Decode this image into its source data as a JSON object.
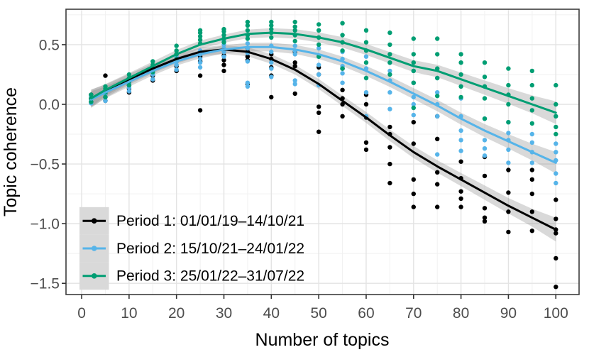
{
  "chart_data": {
    "type": "scatter",
    "title": "",
    "xlabel": "Number of topics",
    "ylabel": "Topic coherence",
    "x_domain": [
      -3.3,
      104.9
    ],
    "y_domain": [
      -1.594,
      0.797
    ],
    "x_ticks": [
      0,
      10,
      20,
      30,
      40,
      50,
      60,
      70,
      80,
      90,
      100
    ],
    "x_tick_labels": [
      "0",
      "10",
      "20",
      "30",
      "40",
      "50",
      "60",
      "70",
      "80",
      "90",
      "100"
    ],
    "y_ticks": [
      0.5,
      0,
      -0.5,
      -1,
      -1.5
    ],
    "y_tick_labels": [
      "0.5",
      "0.0",
      "−0.5",
      "−1.0",
      "−1.5"
    ],
    "x_minor": [
      5,
      15,
      25,
      35,
      45,
      55,
      65,
      75,
      85,
      95
    ],
    "y_minor": [
      0.75,
      0.25,
      -0.25,
      -0.75,
      -1.25
    ],
    "grid": true,
    "legend_position": "bottom-left-inside",
    "cluster_x": [
      2,
      5,
      10,
      15,
      20,
      25,
      30,
      35,
      40,
      45,
      50,
      55,
      60,
      65,
      70,
      75,
      80,
      85,
      90,
      95,
      100
    ],
    "colors": {
      "grid_major": "#e3e3e3",
      "grid_minor": "#f1f1f1",
      "panel_border": "#3c3c3c",
      "tick_mark": "#333333",
      "tick_label": "#4d4d4d",
      "ribbon": "#808080",
      "legend_key_fill": "#d9d9d9"
    },
    "series": [
      {
        "name": "Period 1: 01/01/19–14/10/21",
        "color": "#000000",
        "smooth_y": [
          0.05,
          0.11,
          0.21,
          0.3,
          0.38,
          0.44,
          0.46,
          0.44,
          0.38,
          0.29,
          0.17,
          0.03,
          -0.11,
          -0.26,
          -0.4,
          -0.52,
          -0.63,
          -0.74,
          -0.85,
          -0.95,
          -1.05
        ],
        "ci_hw": [
          0.075,
          0.055,
          0.045,
          0.04,
          0.038,
          0.036,
          0.036,
          0.038,
          0.04,
          0.04,
          0.042,
          0.044,
          0.046,
          0.048,
          0.05,
          0.052,
          0.055,
          0.06,
          0.065,
          0.075,
          0.1
        ],
        "points_y": [
          [
            0.02,
            0.05,
            0.08
          ],
          [
            0.03,
            0.06,
            0.09,
            0.24
          ],
          [
            0.1,
            0.13,
            0.16,
            0.19
          ],
          [
            0.2,
            0.24,
            0.27,
            0.3
          ],
          [
            0.28,
            0.32,
            0.36,
            0.42
          ],
          [
            -0.05,
            0.24,
            0.36,
            0.4,
            0.43
          ],
          [
            0.28,
            0.33,
            0.37,
            0.41,
            0.46
          ],
          [
            0.17,
            0.37,
            0.4,
            0.44,
            0.47
          ],
          [
            0.06,
            0.24,
            0.31,
            0.38,
            0.42
          ],
          [
            0.09,
            0.32,
            0.35,
            0.44
          ],
          [
            -0.23,
            -0.07,
            -0.02,
            0.25,
            0.31
          ],
          [
            -0.1,
            0.0,
            0.05,
            0.12,
            0.3
          ],
          [
            -0.38,
            -0.32,
            -0.11,
            0.0,
            0.08
          ],
          [
            -0.66,
            -0.5,
            -0.36,
            -0.25,
            -0.19
          ],
          [
            -0.86,
            -0.75,
            -0.63,
            -0.33,
            -0.15
          ],
          [
            -0.86,
            -0.67,
            -0.57,
            -0.29,
            -0.1
          ],
          [
            -0.86,
            -0.79,
            -0.73,
            -0.62,
            -0.48
          ],
          [
            -0.98,
            -0.95,
            -0.87,
            -0.6,
            -0.44
          ],
          [
            -1.07,
            -0.9,
            -0.74,
            -0.55
          ],
          [
            -1.06,
            -0.9,
            -0.75,
            -0.63,
            -0.55
          ],
          [
            -1.53,
            -1.29,
            -1.08,
            -1.05,
            -0.96,
            -0.8
          ]
        ]
      },
      {
        "name": "Period 2: 15/10/21–24/01/22",
        "color": "#56b4e9",
        "smooth_y": [
          0.04,
          0.1,
          0.19,
          0.28,
          0.36,
          0.42,
          0.46,
          0.48,
          0.48,
          0.46,
          0.42,
          0.36,
          0.28,
          0.19,
          0.09,
          -0.01,
          -0.12,
          -0.22,
          -0.31,
          -0.4,
          -0.49
        ],
        "ci_hw": [
          0.07,
          0.05,
          0.042,
          0.038,
          0.035,
          0.034,
          0.034,
          0.035,
          0.037,
          0.038,
          0.04,
          0.04,
          0.042,
          0.044,
          0.046,
          0.048,
          0.05,
          0.055,
          0.06,
          0.07,
          0.09
        ],
        "points_y": [
          [
            0.01,
            0.04,
            0.07
          ],
          [
            0.03,
            0.06,
            0.09
          ],
          [
            0.11,
            0.14,
            0.17,
            0.2
          ],
          [
            0.21,
            0.25,
            0.28,
            0.31
          ],
          [
            0.29,
            0.33,
            0.36,
            0.4
          ],
          [
            0.31,
            0.35,
            0.38,
            0.42,
            0.45
          ],
          [
            0.4,
            0.44,
            0.47,
            0.5,
            0.53
          ],
          [
            0.15,
            0.18,
            0.36,
            0.43,
            0.47,
            0.51
          ],
          [
            0.23,
            0.3,
            0.35,
            0.44,
            0.49
          ],
          [
            0.17,
            0.2,
            0.42,
            0.45,
            0.49
          ],
          [
            0.16,
            0.25,
            0.33,
            0.4,
            0.47
          ],
          [
            0.18,
            0.26,
            0.32,
            0.38,
            0.44
          ],
          [
            -0.1,
            0.1,
            0.22,
            0.3,
            0.4
          ],
          [
            -0.04,
            0.1,
            0.2,
            0.28,
            0.35
          ],
          [
            -0.09,
            0.0,
            0.06,
            0.18,
            0.28
          ],
          [
            -0.42,
            -0.1,
            0.0,
            0.1,
            0.22
          ],
          [
            -0.39,
            -0.3,
            -0.22,
            -0.1,
            0.05
          ],
          [
            -0.43,
            -0.37,
            -0.3,
            -0.12
          ],
          [
            -0.49,
            -0.38,
            -0.3,
            -0.24,
            -0.15
          ],
          [
            -0.49,
            -0.4,
            -0.32,
            -0.25
          ],
          [
            -0.66,
            -0.58,
            -0.47,
            -0.4,
            -0.33
          ]
        ]
      },
      {
        "name": "Period 3: 25/01/22–31/07/22",
        "color": "#009e73",
        "smooth_y": [
          0.05,
          0.12,
          0.22,
          0.32,
          0.42,
          0.5,
          0.55,
          0.59,
          0.6,
          0.59,
          0.56,
          0.52,
          0.46,
          0.39,
          0.32,
          0.28,
          0.21,
          0.14,
          0.07,
          0.0,
          -0.07
        ],
        "ci_hw": [
          0.07,
          0.05,
          0.042,
          0.038,
          0.035,
          0.034,
          0.034,
          0.036,
          0.038,
          0.04,
          0.042,
          0.044,
          0.046,
          0.048,
          0.05,
          0.052,
          0.056,
          0.06,
          0.065,
          0.075,
          0.095
        ],
        "points_y": [
          [
            0.02,
            0.05,
            0.08
          ],
          [
            0.06,
            0.1,
            0.13,
            0.15
          ],
          [
            0.16,
            0.19,
            0.22,
            0.25
          ],
          [
            0.27,
            0.3,
            0.33,
            0.36
          ],
          [
            0.38,
            0.42,
            0.45,
            0.49
          ],
          [
            0.51,
            0.54,
            0.57,
            0.6,
            0.62
          ],
          [
            0.52,
            0.55,
            0.58,
            0.61,
            0.63
          ],
          [
            0.55,
            0.58,
            0.62,
            0.66,
            0.69
          ],
          [
            0.56,
            0.6,
            0.63,
            0.66,
            0.69
          ],
          [
            0.53,
            0.58,
            0.62,
            0.65,
            0.69
          ],
          [
            0.4,
            0.5,
            0.56,
            0.62,
            0.67
          ],
          [
            0.3,
            0.45,
            0.52,
            0.58,
            0.68
          ],
          [
            0.22,
            0.35,
            0.45,
            0.52,
            0.62
          ],
          [
            0.25,
            0.35,
            0.42,
            0.5,
            0.6
          ],
          [
            -0.03,
            0.18,
            0.28,
            0.35,
            0.42,
            0.55
          ],
          [
            0.07,
            0.22,
            0.3,
            0.42,
            0.55
          ],
          [
            0.06,
            0.15,
            0.25,
            0.35,
            0.42
          ],
          [
            -0.12,
            0.05,
            0.15,
            0.23,
            0.35
          ],
          [
            -0.15,
            0.0,
            0.08,
            0.16,
            0.3
          ],
          [
            -0.16,
            -0.05,
            0.05,
            0.16,
            0.28
          ],
          [
            -0.25,
            -0.19,
            -0.1,
            0.0,
            0.16
          ]
        ]
      }
    ]
  }
}
